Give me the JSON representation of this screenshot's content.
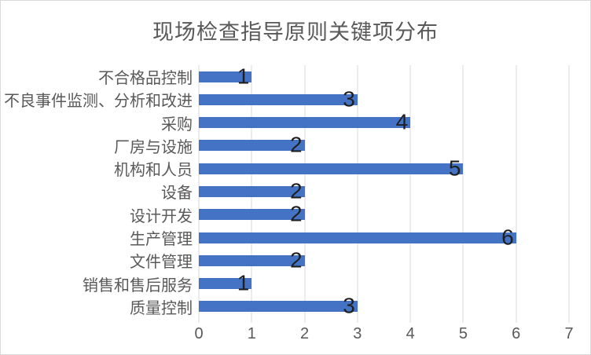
{
  "chart_data": {
    "type": "bar",
    "orientation": "horizontal",
    "title": "现场检查指导原则关键项分布",
    "categories": [
      "不合格品控制",
      "不良事件监测、分析和改进",
      "采购",
      "厂房与设施",
      "机构和人员",
      "设备",
      "设计开发",
      "生产管理",
      "文件管理",
      "销售和售后服务",
      "质量控制"
    ],
    "values": [
      1,
      3,
      4,
      2,
      5,
      2,
      2,
      6,
      2,
      1,
      3
    ],
    "xlabel": "",
    "ylabel": "",
    "xlim": [
      0,
      7
    ],
    "x_ticks": [
      "0",
      "1",
      "2",
      "3",
      "4",
      "5",
      "6",
      "7"
    ],
    "grid": "vertical-major",
    "legend": "none",
    "data_label_position": "inside-end",
    "colors": {
      "bar": "#4472C4",
      "gridline": "#D9D9D9",
      "title_text": "#595959",
      "axis_text": "#595959",
      "data_label_text": "#1F1F1F",
      "background": "#FFFFFF",
      "frame_border": "#D9D9D9"
    }
  }
}
